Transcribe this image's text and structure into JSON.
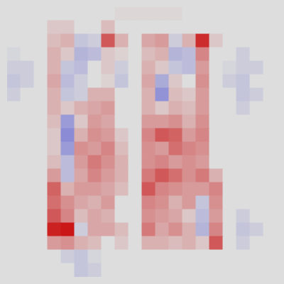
{
  "chart_data": {
    "type": "heatmap",
    "tick_labels": false,
    "grid": false,
    "xlim": [
      0,
      20
    ],
    "ylim": [
      0,
      20
    ],
    "color_range": [
      -1,
      1
    ],
    "cells": [
      [
        0,
        0,
        0,
        0,
        0,
        0,
        0,
        0,
        0.03,
        0.03,
        0.03,
        0.03,
        0.03,
        0,
        0,
        0,
        0,
        0,
        0,
        0
      ],
      [
        0,
        0,
        0,
        0.1,
        0.1,
        0,
        0,
        0.15,
        0,
        0,
        0,
        0,
        0,
        0,
        0,
        0,
        0,
        0,
        0,
        0
      ],
      [
        0,
        0,
        0,
        0.15,
        0.2,
        -0.15,
        -0.1,
        0.6,
        0.2,
        0,
        0.25,
        0.3,
        -0.1,
        0.2,
        0.8,
        0.1,
        0,
        0,
        0,
        0
      ],
      [
        -0.05,
        0,
        0,
        0.2,
        0.1,
        -0.25,
        -0.2,
        0.1,
        0.05,
        0,
        0.15,
        0.2,
        -0.25,
        -0.2,
        0.4,
        0,
        0,
        -0.1,
        0,
        0
      ],
      [
        -0.1,
        -0.1,
        0,
        0.2,
        -0.15,
        -0.2,
        0,
        0.1,
        -0.1,
        0,
        0.2,
        0.1,
        -0.15,
        -0.2,
        0.3,
        0,
        -0.05,
        -0.1,
        -0.1,
        0
      ],
      [
        -0.15,
        -0.1,
        0,
        0.25,
        -0.2,
        -0.1,
        0,
        0.05,
        -0.15,
        0,
        0.25,
        -0.3,
        0.1,
        0,
        0.35,
        0,
        -0.1,
        -0.15,
        0,
        0
      ],
      [
        -0.1,
        0,
        0,
        0.2,
        -0.15,
        -0.1,
        0.2,
        0.2,
        0,
        0,
        0.2,
        -0.45,
        0.15,
        0.1,
        0.3,
        0,
        0,
        -0.15,
        -0.1,
        0
      ],
      [
        0,
        0,
        0,
        0.2,
        0.1,
        0.2,
        0.25,
        0.3,
        0,
        0,
        0.2,
        0.1,
        0.2,
        0.15,
        0.3,
        0,
        0,
        -0.1,
        0,
        0
      ],
      [
        0,
        0,
        0,
        0.15,
        -0.4,
        0.1,
        0.3,
        0.25,
        0,
        0,
        0.3,
        0.3,
        0.35,
        0.2,
        0.35,
        0,
        0,
        0,
        0,
        0
      ],
      [
        0,
        0,
        0,
        0.1,
        -0.5,
        0.2,
        0.35,
        0.3,
        0.1,
        0,
        0.4,
        0.6,
        0.55,
        0.3,
        0.4,
        0,
        0,
        0,
        0,
        0
      ],
      [
        0,
        0,
        0,
        0.1,
        -0.4,
        0.35,
        0.3,
        0.4,
        0.15,
        0,
        0.35,
        0.3,
        0.5,
        0.4,
        0.35,
        0,
        0,
        0,
        0,
        0
      ],
      [
        0,
        0,
        0,
        0.15,
        -0.2,
        0.3,
        0.45,
        0.35,
        0.2,
        0,
        0.35,
        0.4,
        0.3,
        0.35,
        0.3,
        0,
        0,
        0,
        0,
        0
      ],
      [
        0,
        0,
        0,
        0.3,
        -0.2,
        0.25,
        0.4,
        0.3,
        0.2,
        0,
        0.45,
        0.6,
        0.5,
        0.35,
        0.45,
        0.2,
        0,
        0,
        0,
        0
      ],
      [
        0,
        0,
        0,
        0.55,
        0.2,
        0.3,
        0.3,
        0.25,
        0.15,
        0,
        0.6,
        0.4,
        0.35,
        0.3,
        0.3,
        0.4,
        0,
        0,
        0,
        0
      ],
      [
        0,
        0,
        0,
        0.5,
        0.35,
        0.25,
        0.2,
        0.3,
        0,
        0,
        0.4,
        0.35,
        0.2,
        0.3,
        -0.15,
        0.35,
        0,
        0,
        0,
        0
      ],
      [
        0,
        0,
        0,
        0.6,
        0.4,
        0.15,
        0.25,
        0.2,
        0,
        0,
        0.35,
        0.3,
        0.25,
        0.1,
        -0.2,
        0.3,
        0,
        -0.1,
        0,
        0
      ],
      [
        0,
        0,
        0,
        0.85,
        0.9,
        -0.1,
        0.25,
        0.25,
        0.15,
        0,
        0.45,
        0.25,
        0.35,
        0.2,
        -0.25,
        0.4,
        0,
        -0.15,
        -0.1,
        0
      ],
      [
        0,
        0,
        0,
        0.3,
        0.35,
        0.2,
        0.15,
        0,
        0.1,
        0,
        0.2,
        0.2,
        0.15,
        0.2,
        0.1,
        0.6,
        0,
        -0.1,
        0,
        0
      ],
      [
        0,
        0,
        0,
        0,
        -0.1,
        -0.15,
        -0.05,
        0,
        0,
        0,
        0,
        0,
        0,
        0,
        0,
        0,
        0,
        0,
        0,
        0
      ],
      [
        0,
        0,
        0,
        0,
        0,
        -0.15,
        -0.1,
        0,
        0,
        0,
        0,
        0,
        0,
        0,
        0,
        0,
        0,
        0,
        0,
        0
      ]
    ]
  }
}
